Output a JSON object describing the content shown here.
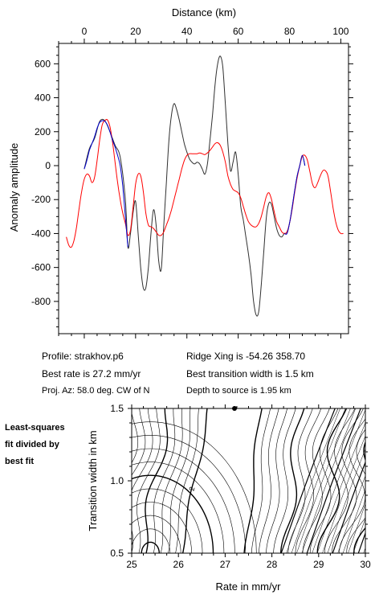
{
  "top_xlabel": "Distance (km)",
  "top_ylabel": "Anomaly amplitude",
  "info": {
    "profile": "Profile: strakhov.p6",
    "best_rate": "Best rate is 27.2 mm/yr",
    "proj_az": "Proj. Az: 58.0 deg. CW of N",
    "ridge_xing": "Ridge Xing is -54.26 358.70",
    "best_width": "Best transition width is 1.5 km",
    "depth": "Depth to source is   1.95 km"
  },
  "side_note": [
    "Least-squares",
    "fit divided by",
    "best fit"
  ],
  "bottom_xlabel": "Rate in mm/yr",
  "bottom_ylabel": "Transition width in km",
  "contour_label": "2",
  "colors": {
    "observed": "#303030",
    "model": "#ff0000",
    "fit_window": "#0000cc",
    "contour": "#000000"
  },
  "chart_data": [
    {
      "type": "line",
      "xlim": [
        -10,
        103
      ],
      "ylim": [
        -990,
        720
      ],
      "x_ticks": [
        0,
        20,
        40,
        60,
        80,
        100
      ],
      "y_ticks": [
        600,
        400,
        200,
        0,
        -200,
        -400,
        -600,
        -800
      ],
      "xlabel": "Distance (km)",
      "ylabel": "Anomaly amplitude",
      "series": [
        {
          "color": "#303030",
          "points": [
            [
              0,
              -20
            ],
            [
              2,
              100
            ],
            [
              4,
              160
            ],
            [
              6,
              260
            ],
            [
              8,
              265
            ],
            [
              10,
              200
            ],
            [
              12,
              120
            ],
            [
              14,
              50
            ],
            [
              16,
              -200
            ],
            [
              17,
              -480
            ],
            [
              18,
              -400
            ],
            [
              19,
              -280
            ],
            [
              20,
              -210
            ],
            [
              21,
              -400
            ],
            [
              22,
              -600
            ],
            [
              23,
              -720
            ],
            [
              24,
              -720
            ],
            [
              25,
              -600
            ],
            [
              26,
              -400
            ],
            [
              27,
              -260
            ],
            [
              28,
              -350
            ],
            [
              29,
              -560
            ],
            [
              30,
              -610
            ],
            [
              31,
              -350
            ],
            [
              32,
              -100
            ],
            [
              33,
              150
            ],
            [
              34,
              300
            ],
            [
              35,
              365
            ],
            [
              36,
              330
            ],
            [
              37,
              270
            ],
            [
              38,
              200
            ],
            [
              39,
              130
            ],
            [
              40,
              80
            ],
            [
              41,
              40
            ],
            [
              42,
              20
            ],
            [
              43,
              10
            ],
            [
              44,
              20
            ],
            [
              45,
              10
            ],
            [
              46,
              -20
            ],
            [
              47,
              -50
            ],
            [
              48,
              10
            ],
            [
              49,
              150
            ],
            [
              50,
              300
            ],
            [
              51,
              480
            ],
            [
              52,
              600
            ],
            [
              53,
              645
            ],
            [
              54,
              580
            ],
            [
              55,
              360
            ],
            [
              56,
              130
            ],
            [
              57,
              -30
            ],
            [
              58,
              20
            ],
            [
              59,
              80
            ],
            [
              60,
              -50
            ],
            [
              61,
              -240
            ],
            [
              62,
              -320
            ],
            [
              63,
              -420
            ],
            [
              64,
              -520
            ],
            [
              65,
              -640
            ],
            [
              66,
              -800
            ],
            [
              67,
              -880
            ],
            [
              68,
              -860
            ],
            [
              69,
              -700
            ],
            [
              70,
              -500
            ],
            [
              71,
              -300
            ],
            [
              72,
              -220
            ],
            [
              73,
              -230
            ],
            [
              74,
              -300
            ],
            [
              75,
              -370
            ],
            [
              76,
              -410
            ],
            [
              77,
              -420
            ],
            [
              78,
              -400
            ],
            [
              79,
              -400
            ],
            [
              80,
              -340
            ],
            [
              81,
              -250
            ],
            [
              82,
              -150
            ],
            [
              83,
              -60
            ],
            [
              84,
              0
            ],
            [
              85,
              60
            ],
            [
              86,
              0
            ]
          ]
        },
        {
          "color": "#ff0000",
          "points": [
            [
              -7,
              -420
            ],
            [
              -6,
              -470
            ],
            [
              -5,
              -480
            ],
            [
              -4,
              -440
            ],
            [
              -3,
              -360
            ],
            [
              -2,
              -250
            ],
            [
              -1,
              -150
            ],
            [
              0,
              -80
            ],
            [
              1,
              -50
            ],
            [
              2,
              -60
            ],
            [
              3,
              -100
            ],
            [
              4,
              -70
            ],
            [
              5,
              30
            ],
            [
              6,
              150
            ],
            [
              7,
              240
            ],
            [
              8,
              265
            ],
            [
              9,
              270
            ],
            [
              10,
              230
            ],
            [
              11,
              140
            ],
            [
              12,
              20
            ],
            [
              13,
              -100
            ],
            [
              14,
              -200
            ],
            [
              15,
              -280
            ],
            [
              16,
              -340
            ],
            [
              17,
              -410
            ],
            [
              18,
              -380
            ],
            [
              19,
              -250
            ],
            [
              20,
              -110
            ],
            [
              21,
              -50
            ],
            [
              22,
              -60
            ],
            [
              23,
              -150
            ],
            [
              24,
              -280
            ],
            [
              25,
              -350
            ],
            [
              26,
              -360
            ],
            [
              27,
              -370
            ],
            [
              28,
              -390
            ],
            [
              29,
              -410
            ],
            [
              30,
              -410
            ],
            [
              31,
              -390
            ],
            [
              32,
              -350
            ],
            [
              33,
              -310
            ],
            [
              34,
              -260
            ],
            [
              35,
              -200
            ],
            [
              36,
              -140
            ],
            [
              37,
              -80
            ],
            [
              38,
              -20
            ],
            [
              39,
              30
            ],
            [
              40,
              60
            ],
            [
              41,
              70
            ],
            [
              42,
              70
            ],
            [
              43,
              70
            ],
            [
              44,
              70
            ],
            [
              45,
              75
            ],
            [
              46,
              70
            ],
            [
              47,
              65
            ],
            [
              48,
              75
            ],
            [
              49,
              90
            ],
            [
              50,
              110
            ],
            [
              51,
              130
            ],
            [
              52,
              135
            ],
            [
              53,
              120
            ],
            [
              54,
              80
            ],
            [
              55,
              20
            ],
            [
              56,
              -60
            ],
            [
              57,
              -110
            ],
            [
              58,
              -140
            ],
            [
              59,
              -150
            ],
            [
              60,
              -160
            ],
            [
              61,
              -190
            ],
            [
              62,
              -240
            ],
            [
              63,
              -290
            ],
            [
              64,
              -330
            ],
            [
              65,
              -350
            ],
            [
              66,
              -360
            ],
            [
              67,
              -360
            ],
            [
              68,
              -340
            ],
            [
              69,
              -300
            ],
            [
              70,
              -240
            ],
            [
              71,
              -180
            ],
            [
              72,
              -160
            ],
            [
              73,
              -200
            ],
            [
              74,
              -270
            ],
            [
              75,
              -330
            ],
            [
              76,
              -360
            ],
            [
              77,
              -390
            ],
            [
              78,
              -400
            ],
            [
              79,
              -390
            ],
            [
              80,
              -340
            ],
            [
              81,
              -260
            ],
            [
              82,
              -160
            ],
            [
              83,
              -70
            ],
            [
              84,
              0
            ],
            [
              85,
              55
            ],
            [
              86,
              60
            ],
            [
              87,
              30
            ],
            [
              88,
              -40
            ],
            [
              89,
              -110
            ],
            [
              90,
              -130
            ],
            [
              91,
              -100
            ],
            [
              92,
              -60
            ],
            [
              93,
              -30
            ],
            [
              94,
              -30
            ],
            [
              95,
              -60
            ],
            [
              96,
              -150
            ],
            [
              97,
              -250
            ],
            [
              98,
              -330
            ],
            [
              99,
              -380
            ],
            [
              100,
              -400
            ],
            [
              101,
              -400
            ]
          ]
        },
        {
          "color": "#0000cc",
          "points": [
            [
              0,
              -20
            ],
            [
              1,
              30
            ],
            [
              2,
              90
            ],
            [
              3,
              130
            ],
            [
              4,
              170
            ],
            [
              5,
              220
            ],
            [
              6,
              255
            ],
            [
              7,
              265
            ],
            [
              8,
              262
            ],
            [
              9,
              240
            ],
            [
              10,
              200
            ],
            [
              11,
              150
            ],
            [
              12,
              110
            ],
            [
              13,
              60
            ],
            [
              14,
              0
            ],
            [
              15,
              -120
            ],
            [
              16,
              -300
            ],
            [
              17,
              -480
            ]
          ]
        },
        {
          "color": "#0000cc",
          "points": [
            [
              78,
              -400
            ],
            [
              79,
              -400
            ],
            [
              80,
              -340
            ],
            [
              81,
              -250
            ],
            [
              82,
              -150
            ],
            [
              83,
              -60
            ],
            [
              84,
              0
            ],
            [
              85,
              60
            ],
            [
              86,
              0
            ]
          ]
        }
      ]
    },
    {
      "type": "contour",
      "xlim": [
        25,
        30
      ],
      "ylim": [
        0.5,
        1.5
      ],
      "x_ticks": [
        25,
        26,
        27,
        28,
        29,
        30
      ],
      "y_ticks": [
        1.5,
        1.0,
        0.5
      ],
      "xlabel": "Rate in mm/yr",
      "ylabel": "Transition width in km",
      "best_fit_point": [
        27.2,
        1.5
      ]
    }
  ]
}
